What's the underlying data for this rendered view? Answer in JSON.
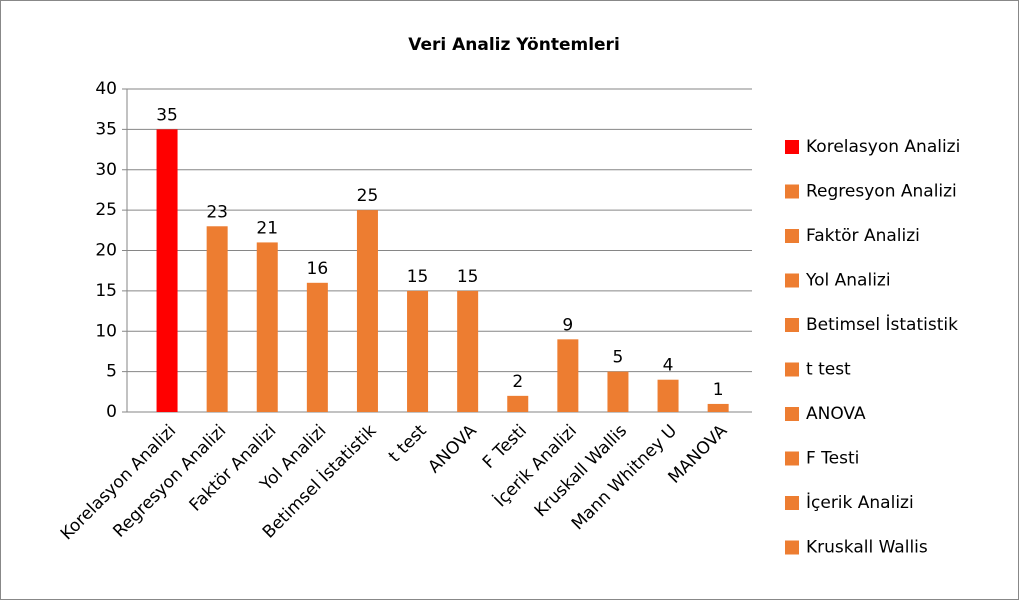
{
  "chart_data": {
    "type": "bar",
    "title": "Veri Analiz Yöntemleri",
    "categories": [
      "Korelasyon Analizi",
      "Regresyon Analizi",
      "Faktör Analizi",
      "Yol Analizi",
      "Betimsel İstatistik",
      "t test",
      "ANOVA",
      "F Testi",
      "İçerik Analizi",
      "Kruskall Wallis",
      "Mann Whitney U",
      "MANOVA"
    ],
    "values": [
      35,
      23,
      21,
      16,
      25,
      15,
      15,
      2,
      9,
      5,
      4,
      1
    ],
    "colors": [
      "#ff0000",
      "#ed7d31",
      "#ed7d31",
      "#ed7d31",
      "#ed7d31",
      "#ed7d31",
      "#ed7d31",
      "#ed7d31",
      "#ed7d31",
      "#ed7d31",
      "#ed7d31",
      "#ed7d31"
    ],
    "ylim": [
      0,
      40
    ],
    "yticks": [
      0,
      5,
      10,
      15,
      20,
      25,
      30,
      35,
      40
    ],
    "grid": true,
    "legend": "right"
  }
}
